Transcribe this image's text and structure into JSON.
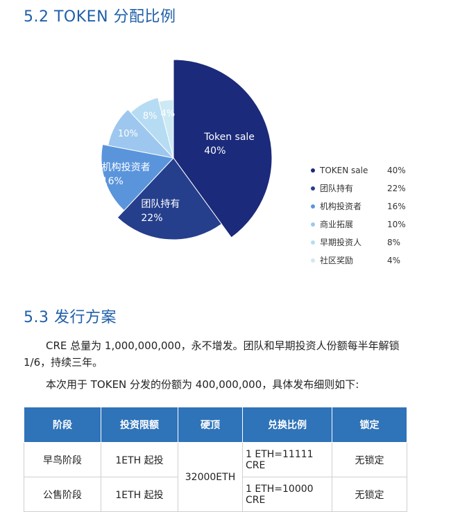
{
  "section1": {
    "title": "5.2 TOKEN 分配比例"
  },
  "chart_data": {
    "type": "pie",
    "categories": [
      "TOKEN sale",
      "团队持有",
      "机构投资者",
      "商业拓展",
      "早期投资人",
      "社区奖励"
    ],
    "values": [
      40,
      22,
      16,
      10,
      8,
      4
    ],
    "slice_labels": [
      {
        "name": "Token sale",
        "value": "40%"
      },
      {
        "name": "团队持有",
        "value": "22%"
      },
      {
        "name": "机构投资者",
        "value": "16%"
      },
      {
        "name": "",
        "value": "10%"
      },
      {
        "name": "",
        "value": "8%"
      },
      {
        "name": "",
        "value": "4%"
      }
    ],
    "legend": [
      {
        "name": "TOKEN sale",
        "value": "40%",
        "color": "#1b2a7a"
      },
      {
        "name": "团队持有",
        "value": "22%",
        "color": "#253f8c"
      },
      {
        "name": "机构投资者",
        "value": "16%",
        "color": "#5a95dc"
      },
      {
        "name": "商业拓展",
        "value": "10%",
        "color": "#9dc7ee"
      },
      {
        "name": "早期投资人",
        "value": "8%",
        "color": "#b6dcf3"
      },
      {
        "name": "社区奖励",
        "value": "4%",
        "color": "#cde9f4"
      }
    ],
    "colors": [
      "#1b2a7a",
      "#253f8c",
      "#5a95dc",
      "#9dc7ee",
      "#b6dcf3",
      "#cde9f4"
    ],
    "legend_position": "right"
  },
  "section2": {
    "title": "5.3 发行方案",
    "para1": "CRE 总量为 1,000,000,000，永不增发。团队和早期投资人份额每半年解锁 1/6，持续三年。",
    "para2": "本次用于 TOKEN 分发的份额为 400,000,000，具体发布细则如下:"
  },
  "table": {
    "headers": [
      "阶段",
      "投资限额",
      "硬顶",
      "兑换比例",
      "锁定"
    ],
    "hardcap": "32000ETH",
    "rows": [
      {
        "stage": "早鸟阶段",
        "limit": "1ETH 起投",
        "ratio": "1 ETH=11111 CRE",
        "lock": "无锁定"
      },
      {
        "stage": "公售阶段",
        "limit": "1ETH 起投",
        "ratio": "1 ETH=10000 CRE",
        "lock": "无锁定"
      }
    ]
  }
}
